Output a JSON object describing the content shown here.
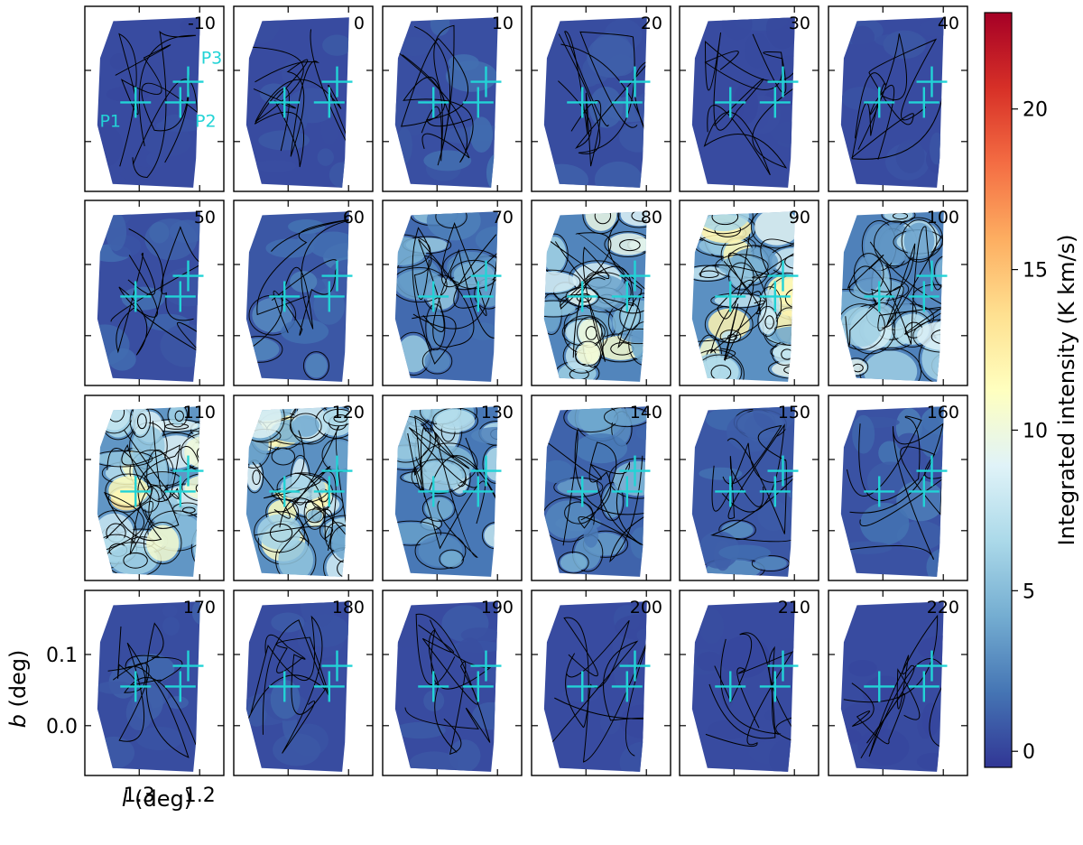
{
  "chart_data": {
    "type": "heatmap",
    "panel_labels": [
      "-10",
      "0",
      "10",
      "20",
      "30",
      "40",
      "50",
      "60",
      "70",
      "80",
      "90",
      "100",
      "110",
      "120",
      "130",
      "140",
      "150",
      "160",
      "170",
      "180",
      "190",
      "200",
      "210",
      "220"
    ],
    "grid": {
      "rows": 4,
      "cols": 6
    },
    "xlabel_italic": "l",
    "xlabel_rest": " (deg)",
    "ylabel_italic": "b",
    "ylabel_rest": " (deg)",
    "x_ticks": [
      {
        "value": 1.3,
        "label": "1.3"
      },
      {
        "value": 1.2,
        "label": "1.2"
      }
    ],
    "y_ticks": [
      {
        "value": 0.1,
        "label": "0.1"
      },
      {
        "value": 0.0,
        "label": "0.0"
      }
    ],
    "xlim": [
      1.39,
      1.16
    ],
    "ylim": [
      -0.07,
      0.19
    ],
    "markers": [
      {
        "name": "P1",
        "l": 1.306,
        "b": 0.055
      },
      {
        "name": "P2",
        "l": 1.232,
        "b": 0.055
      },
      {
        "name": "P3",
        "l": 1.219,
        "b": 0.084
      }
    ],
    "marker_color": "#22d3d6",
    "colorbar": {
      "label": "Integrated intensity (K km/s)",
      "range": [
        -0.5,
        23
      ],
      "ticks": [
        {
          "value": 0,
          "label": "0"
        },
        {
          "value": 5,
          "label": "5"
        },
        {
          "value": 10,
          "label": "10"
        },
        {
          "value": 15,
          "label": "15"
        },
        {
          "value": 20,
          "label": "20"
        }
      ],
      "colors": [
        "#313695",
        "#4575b4",
        "#74add1",
        "#abd9e9",
        "#e0f3f8",
        "#ffffbf",
        "#fee090",
        "#fdae61",
        "#f46d43",
        "#d73027",
        "#a50026"
      ]
    },
    "panel_levels": [
      0.3,
      0.5,
      1.0,
      0.8,
      0.3,
      0.4,
      0.9,
      1.6,
      3.2,
      5.6,
      6.6,
      5.2,
      7.2,
      6.6,
      4.4,
      2.6,
      1.6,
      1.2,
      0.8,
      0.7,
      0.5,
      0.3,
      0.2,
      0.1
    ]
  }
}
